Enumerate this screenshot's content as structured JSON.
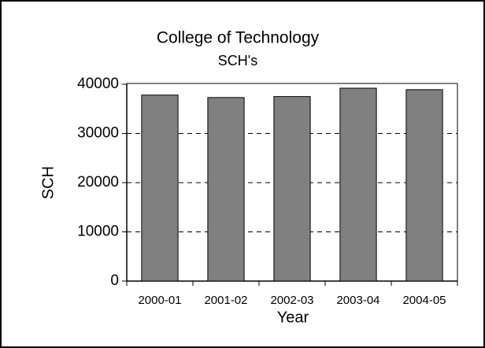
{
  "chart_data": {
    "type": "bar",
    "title": "College of Technology",
    "subtitle": "SCH's",
    "x_label": "Year",
    "y_label": "SCH",
    "categories": [
      "2000-01",
      "2001-02",
      "2002-03",
      "2003-04",
      "2004-05"
    ],
    "values": [
      37800,
      37300,
      37500,
      39200,
      38900
    ],
    "color": "#808080",
    "ylim": [
      0,
      40000
    ],
    "yticks": [
      0,
      10000,
      20000,
      30000,
      40000
    ],
    "grid": true
  }
}
